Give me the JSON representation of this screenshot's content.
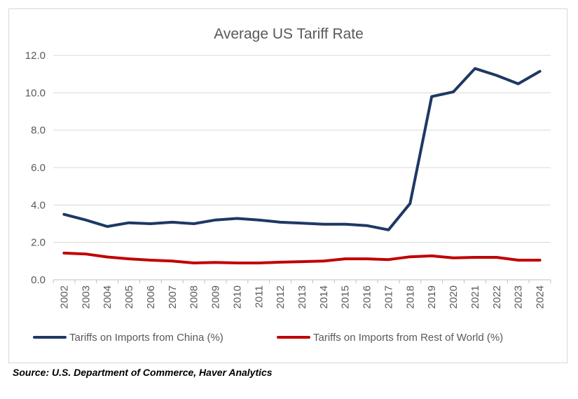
{
  "chart_data": {
    "type": "line",
    "title": "Average US Tariff Rate",
    "xlabel": "",
    "ylabel": "",
    "categories": [
      "2002",
      "2003",
      "2004",
      "2005",
      "2006",
      "2007",
      "2008",
      "2009",
      "2010",
      "2011",
      "2012",
      "2013",
      "2014",
      "2015",
      "2016",
      "2017",
      "2018",
      "2019",
      "2020",
      "2021",
      "2022",
      "2023",
      "2024"
    ],
    "ylim": [
      0,
      12
    ],
    "yticks": [
      "0.0",
      "2.0",
      "4.0",
      "6.0",
      "8.0",
      "10.0",
      "12.0"
    ],
    "grid": true,
    "legend_position": "bottom",
    "series": [
      {
        "name": "Tariffs on Imports from China (%)",
        "color": "#1f3864",
        "values": [
          3.5,
          3.2,
          2.85,
          3.05,
          3.0,
          3.08,
          3.0,
          3.2,
          3.28,
          3.2,
          3.08,
          3.03,
          2.97,
          2.97,
          2.9,
          2.67,
          4.08,
          9.8,
          10.05,
          11.3,
          10.93,
          10.48,
          11.15
        ]
      },
      {
        "name": "Tariffs on Imports from Rest of World (%)",
        "color": "#c00000",
        "values": [
          1.43,
          1.38,
          1.22,
          1.12,
          1.05,
          1.0,
          0.9,
          0.93,
          0.9,
          0.9,
          0.94,
          0.97,
          1.0,
          1.12,
          1.12,
          1.08,
          1.23,
          1.28,
          1.17,
          1.2,
          1.2,
          1.05,
          1.05
        ]
      }
    ]
  },
  "source": "Source: U.S. Department of Commerce, Haver Analytics"
}
